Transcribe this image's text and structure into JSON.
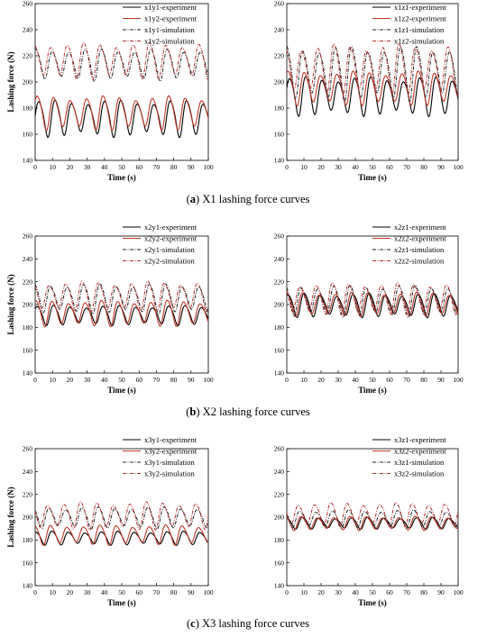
{
  "figure": {
    "captions": [
      {
        "letter": "a",
        "text": " X1 lashing force curves"
      },
      {
        "letter": "b",
        "text": " X2 lashing force curves"
      },
      {
        "letter": "c",
        "text": " X3 lashing force curves"
      }
    ],
    "colors": {
      "experiment_1": "#000000",
      "experiment_2": "#c0392b",
      "simulation_1": "#222222",
      "simulation_2": "#b03030"
    }
  },
  "chart_data": [
    {
      "type": "line",
      "panel": "a-left",
      "xlabel": "Time (s)",
      "ylabel": "Lashing force (N)",
      "xlim": [
        0,
        100
      ],
      "ylim": [
        140,
        260
      ],
      "xticks": [
        0,
        10,
        20,
        30,
        40,
        50,
        60,
        70,
        80,
        90,
        100
      ],
      "yticks": [
        140,
        160,
        180,
        200,
        220,
        240,
        260
      ],
      "legend_position": "top-right",
      "period_s": 9.5,
      "series": [
        {
          "name": "x1y1-experiment",
          "style": "solid-black",
          "mean": 173,
          "amplitude": 16,
          "min": 157,
          "max": 189
        },
        {
          "name": "x1y2-experiment",
          "style": "solid-red",
          "mean": 177,
          "amplitude": 15,
          "min": 162,
          "max": 192
        },
        {
          "name": "x1y1-simulation",
          "style": "dashdot-black",
          "mean": 214,
          "amplitude": 14,
          "min": 200,
          "max": 237
        },
        {
          "name": "x1y2-simulation",
          "style": "dashdot-red",
          "mean": 217,
          "amplitude": 16,
          "min": 200,
          "max": 238
        }
      ]
    },
    {
      "type": "line",
      "panel": "a-right",
      "xlabel": "Time (s)",
      "ylabel": "",
      "xlim": [
        0,
        100
      ],
      "ylim": [
        140,
        260
      ],
      "xticks": [
        0,
        10,
        20,
        30,
        40,
        50,
        60,
        70,
        80,
        90,
        100
      ],
      "yticks": [
        140,
        160,
        180,
        200,
        220,
        240,
        260
      ],
      "legend_position": "top-right",
      "period_s": 9.5,
      "series": [
        {
          "name": "x1z1-experiment",
          "style": "solid-black",
          "mean": 190,
          "amplitude": 17,
          "min": 172,
          "max": 209
        },
        {
          "name": "x1z2-experiment",
          "style": "solid-red",
          "mean": 196,
          "amplitude": 15,
          "min": 180,
          "max": 212
        },
        {
          "name": "x1z1-simulation",
          "style": "dashdot-black",
          "mean": 208,
          "amplitude": 24,
          "min": 182,
          "max": 236
        },
        {
          "name": "x1z2-simulation",
          "style": "dashdot-red",
          "mean": 211,
          "amplitude": 22,
          "min": 186,
          "max": 237
        }
      ]
    },
    {
      "type": "line",
      "panel": "b-left",
      "xlabel": "Time (s)",
      "ylabel": "Lashing force (N)",
      "xlim": [
        0,
        100
      ],
      "ylim": [
        140,
        260
      ],
      "xticks": [
        0,
        10,
        20,
        30,
        40,
        50,
        60,
        70,
        80,
        90,
        100
      ],
      "yticks": [
        140,
        160,
        180,
        200,
        220,
        240,
        260
      ],
      "legend_position": "top-right",
      "period_s": 9.5,
      "series": [
        {
          "name": "x2y1-experiment",
          "style": "solid-black",
          "mean": 191,
          "amplitude": 10,
          "min": 181,
          "max": 201
        },
        {
          "name": "x2y2-experiment",
          "style": "solid-red",
          "mean": 193,
          "amplitude": 13,
          "min": 178,
          "max": 206
        },
        {
          "name": "x2y1-simulation",
          "style": "dashdot-black",
          "mean": 206,
          "amplitude": 15,
          "min": 190,
          "max": 223
        },
        {
          "name": "x2y2-simulation",
          "style": "dashdot-red",
          "mean": 208,
          "amplitude": 15,
          "min": 192,
          "max": 224
        }
      ]
    },
    {
      "type": "line",
      "panel": "b-right",
      "xlabel": "Time (s)",
      "ylabel": "",
      "xlim": [
        0,
        100
      ],
      "ylim": [
        140,
        260
      ],
      "xticks": [
        0,
        10,
        20,
        30,
        40,
        50,
        60,
        70,
        80,
        90,
        100
      ],
      "yticks": [
        140,
        160,
        180,
        200,
        220,
        240,
        260
      ],
      "legend_position": "top-right",
      "period_s": 9.5,
      "series": [
        {
          "name": "x2z1-experiment",
          "style": "solid-black",
          "mean": 200,
          "amplitude": 12,
          "min": 186,
          "max": 214
        },
        {
          "name": "x2z2-experiment",
          "style": "solid-red",
          "mean": 201,
          "amplitude": 12,
          "min": 188,
          "max": 213
        },
        {
          "name": "x2z1-simulation",
          "style": "dashdot-black",
          "mean": 204,
          "amplitude": 16,
          "min": 185,
          "max": 222
        },
        {
          "name": "x2z2-simulation",
          "style": "dashdot-red",
          "mean": 206,
          "amplitude": 16,
          "min": 188,
          "max": 225
        }
      ]
    },
    {
      "type": "line",
      "panel": "c-left",
      "xlabel": "Time (s)",
      "ylabel": "Lashing force (N)",
      "xlim": [
        0,
        100
      ],
      "ylim": [
        140,
        260
      ],
      "xticks": [
        0,
        10,
        20,
        30,
        40,
        50,
        60,
        70,
        80,
        90,
        100
      ],
      "yticks": [
        140,
        160,
        180,
        200,
        220,
        240,
        260
      ],
      "legend_position": "top-right",
      "period_s": 9.5,
      "series": [
        {
          "name": "x3y1-experiment",
          "style": "solid-black",
          "mean": 182,
          "amplitude": 7,
          "min": 175,
          "max": 190
        },
        {
          "name": "x3y2-experiment",
          "style": "solid-red",
          "mean": 185,
          "amplitude": 10,
          "min": 174,
          "max": 196
        },
        {
          "name": "x3y1-simulation",
          "style": "dashdot-black",
          "mean": 200,
          "amplitude": 11,
          "min": 188,
          "max": 212
        },
        {
          "name": "x3y2-simulation",
          "style": "dashdot-red",
          "mean": 202,
          "amplitude": 14,
          "min": 186,
          "max": 220
        }
      ]
    },
    {
      "type": "line",
      "panel": "c-right",
      "xlabel": "Time (s)",
      "ylabel": "",
      "xlim": [
        0,
        100
      ],
      "ylim": [
        140,
        260
      ],
      "xticks": [
        0,
        10,
        20,
        30,
        40,
        50,
        60,
        70,
        80,
        90,
        100
      ],
      "yticks": [
        140,
        160,
        180,
        200,
        220,
        240,
        260
      ],
      "legend_position": "top-right",
      "period_s": 9.5,
      "series": [
        {
          "name": "x3z1-experiment",
          "style": "solid-black",
          "mean": 195,
          "amplitude": 6,
          "min": 188,
          "max": 202
        },
        {
          "name": "x3z2-experiment",
          "style": "solid-red",
          "mean": 195,
          "amplitude": 7,
          "min": 186,
          "max": 204
        },
        {
          "name": "x3z1-simulation",
          "style": "dashdot-black",
          "mean": 199,
          "amplitude": 9,
          "min": 186,
          "max": 212
        },
        {
          "name": "x3z2-simulation",
          "style": "dashdot-red",
          "mean": 203,
          "amplitude": 12,
          "min": 190,
          "max": 221
        }
      ]
    }
  ]
}
